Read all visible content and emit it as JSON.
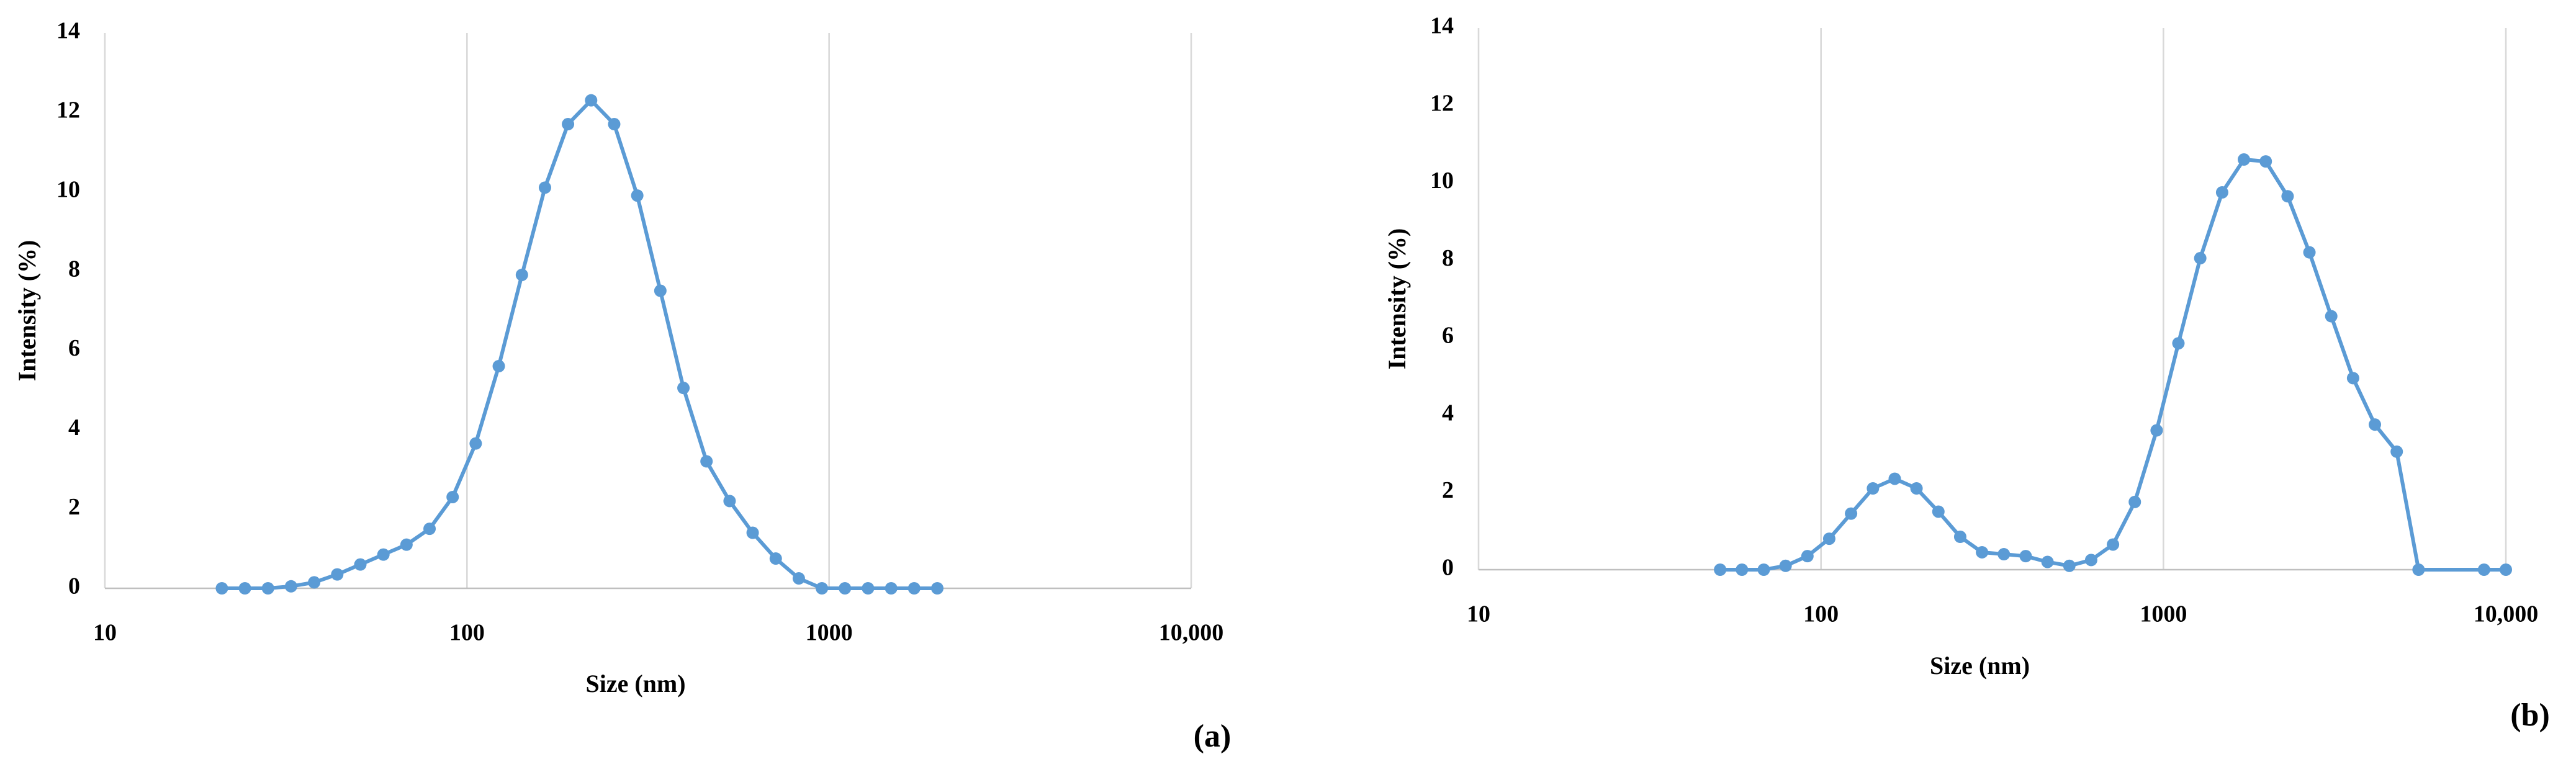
{
  "chart_data": [
    {
      "type": "line",
      "label": "(a)",
      "x_label": "Size (nm)",
      "y_label": "Intensity (%)",
      "x_scale": "log",
      "grid": true,
      "color": "#5b9bd5",
      "xlim": [
        10,
        10000
      ],
      "xticks": [
        10,
        100,
        1000,
        {
          "value": 10000,
          "label": "10,000"
        }
      ],
      "ylim": [
        0,
        14
      ],
      "yticks": [
        0,
        2,
        4,
        6,
        8,
        10,
        12,
        14
      ],
      "x": [
        21.04,
        24.36,
        28.21,
        32.67,
        37.84,
        43.82,
        50.75,
        58.77,
        68.06,
        78.82,
        91.28,
        105.7,
        122.4,
        141.8,
        164.2,
        190.1,
        220.2,
        255.0,
        295.3,
        342.0,
        396.1,
        458.7,
        531.2,
        615.1,
        712.4,
        825.0,
        955.4,
        1106,
        1281,
        1484,
        1718,
        1990
      ],
      "values": [
        0,
        0,
        0,
        0.05,
        0.15,
        0.35,
        0.6,
        0.85,
        1.1,
        1.5,
        2.3,
        3.65,
        5.6,
        7.9,
        10.1,
        11.7,
        12.3,
        11.7,
        9.9,
        7.5,
        5.05,
        3.2,
        2.2,
        1.4,
        0.75,
        0.25,
        0,
        0,
        0,
        0,
        0,
        0
      ]
    },
    {
      "type": "line",
      "label": "(b)",
      "x_label": "Size (nm)",
      "y_label": "Intensity (%)",
      "x_scale": "log",
      "grid": true,
      "color": "#5b9bd5",
      "xlim": [
        10,
        10000
      ],
      "xticks": [
        10,
        100,
        1000,
        {
          "value": 10000,
          "label": "10,000"
        }
      ],
      "ylim": [
        0,
        14
      ],
      "yticks": [
        0,
        2,
        4,
        6,
        8,
        10,
        12,
        14
      ],
      "x": [
        50.75,
        58.77,
        68.06,
        78.82,
        91.28,
        105.7,
        122.4,
        141.8,
        164.2,
        190.1,
        220.2,
        255.0,
        295.3,
        342.0,
        396.1,
        458.7,
        531.2,
        615.1,
        712.4,
        825.0,
        955.4,
        1106,
        1281,
        1484,
        1718,
        1990,
        2305,
        2669,
        3091,
        3580,
        4145,
        4801,
        5560,
        8635,
        10000
      ],
      "values": [
        0,
        0,
        0,
        0.1,
        0.35,
        0.8,
        1.45,
        2.1,
        2.35,
        2.1,
        1.5,
        0.85,
        0.45,
        0.4,
        0.35,
        0.2,
        0.1,
        0.25,
        0.65,
        1.75,
        3.6,
        5.85,
        8.05,
        9.75,
        10.6,
        10.55,
        9.65,
        8.2,
        6.55,
        4.95,
        3.75,
        3.05,
        0,
        0,
        0
      ]
    }
  ]
}
